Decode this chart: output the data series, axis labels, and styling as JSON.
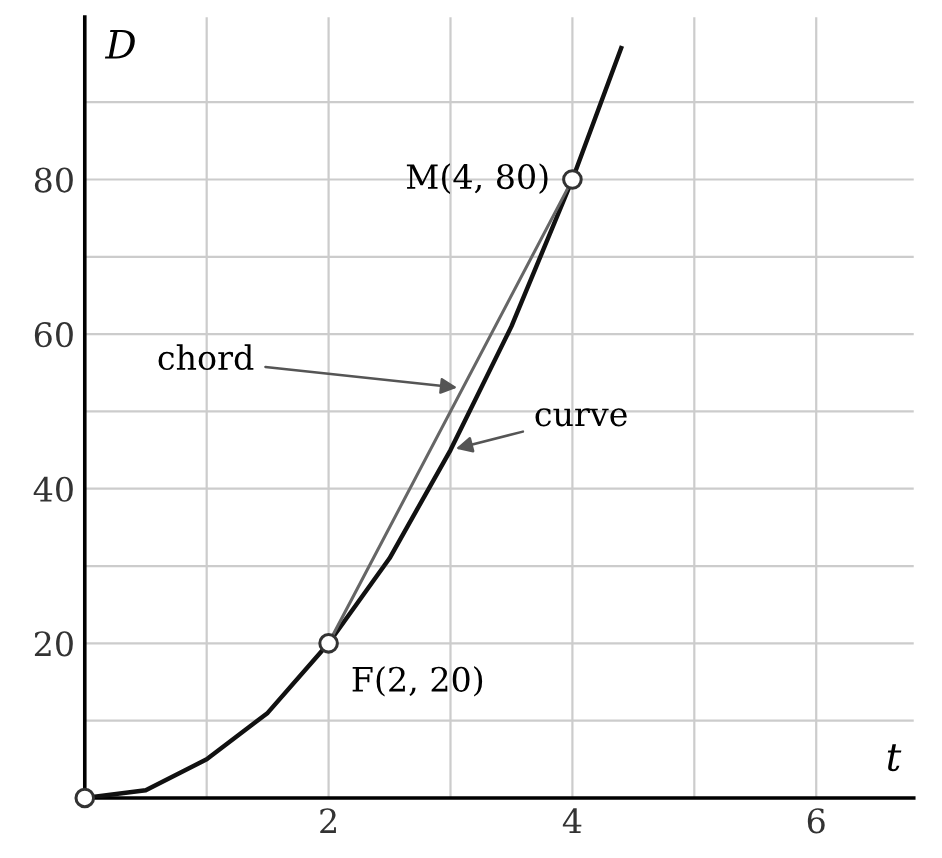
{
  "chart_data": {
    "type": "line",
    "xlabel": "t",
    "ylabel": "D",
    "xlim": [
      0,
      6.8
    ],
    "ylim": [
      0,
      101
    ],
    "xticks": [
      {
        "value": 1,
        "label": null
      },
      2,
      {
        "value": 3,
        "label": null
      },
      4,
      {
        "value": 5,
        "label": null
      },
      6
    ],
    "yticks": [
      {
        "value": 10,
        "label": null
      },
      20,
      {
        "value": 30,
        "label": null
      },
      40,
      {
        "value": 50,
        "label": null
      },
      60,
      {
        "value": 70,
        "label": null
      },
      80,
      {
        "value": 90,
        "label": null
      }
    ],
    "grid": true,
    "series": [
      {
        "color": "#111111",
        "x": [
          0,
          0.5,
          1,
          1.5,
          2,
          2.5,
          3,
          3.5,
          4,
          4.4
        ],
        "values": [
          0,
          1,
          5,
          11,
          20,
          31,
          45,
          61,
          80,
          97
        ]
      },
      {
        "color": "#666666",
        "x": [
          2,
          4
        ],
        "values": [
          20,
          80
        ]
      },
      {
        "type": "scatter",
        "color": "#333333",
        "marker": "circle",
        "x": [
          0,
          2,
          4
        ],
        "values": [
          0,
          20,
          80
        ]
      }
    ],
    "annotations": [
      {
        "text": "F(2, 20)",
        "x": 2,
        "y": 20
      },
      {
        "text": "M(4, 80)",
        "x": 4,
        "y": 80
      },
      {
        "text": "chord",
        "x": 3.1,
        "y": 53
      },
      {
        "text": "curve",
        "x": 3.0,
        "y": 45
      }
    ]
  }
}
